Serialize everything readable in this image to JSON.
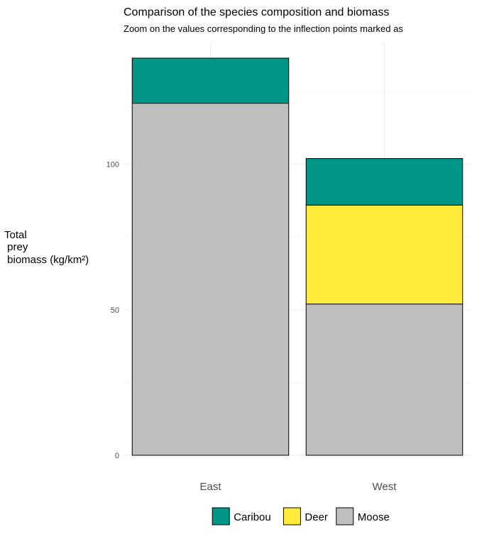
{
  "chart_data": {
    "type": "bar",
    "stacked": true,
    "title": "Comparison of the species composition and biomass",
    "subtitle": "Zoom on the values corresponding to the inflection points marked as",
    "ylabel_lines": [
      "Total",
      " prey",
      " biomass (kg/km²)"
    ],
    "xlabel": "",
    "categories": [
      "East",
      "West"
    ],
    "series": [
      {
        "name": "Moose",
        "color": "#bebebe",
        "values": [
          121,
          52
        ]
      },
      {
        "name": "Deer",
        "color": "#ffeb3b",
        "values": [
          0,
          34
        ]
      },
      {
        "name": "Caribou",
        "color": "#009688",
        "values": [
          15.5,
          16
        ]
      }
    ],
    "yticks": [
      0,
      50,
      100
    ],
    "ylim": [
      0,
      136.5
    ],
    "grid": true,
    "legend": {
      "position": "bottom",
      "order": [
        "Caribou",
        "Deer",
        "Moose"
      ]
    }
  }
}
